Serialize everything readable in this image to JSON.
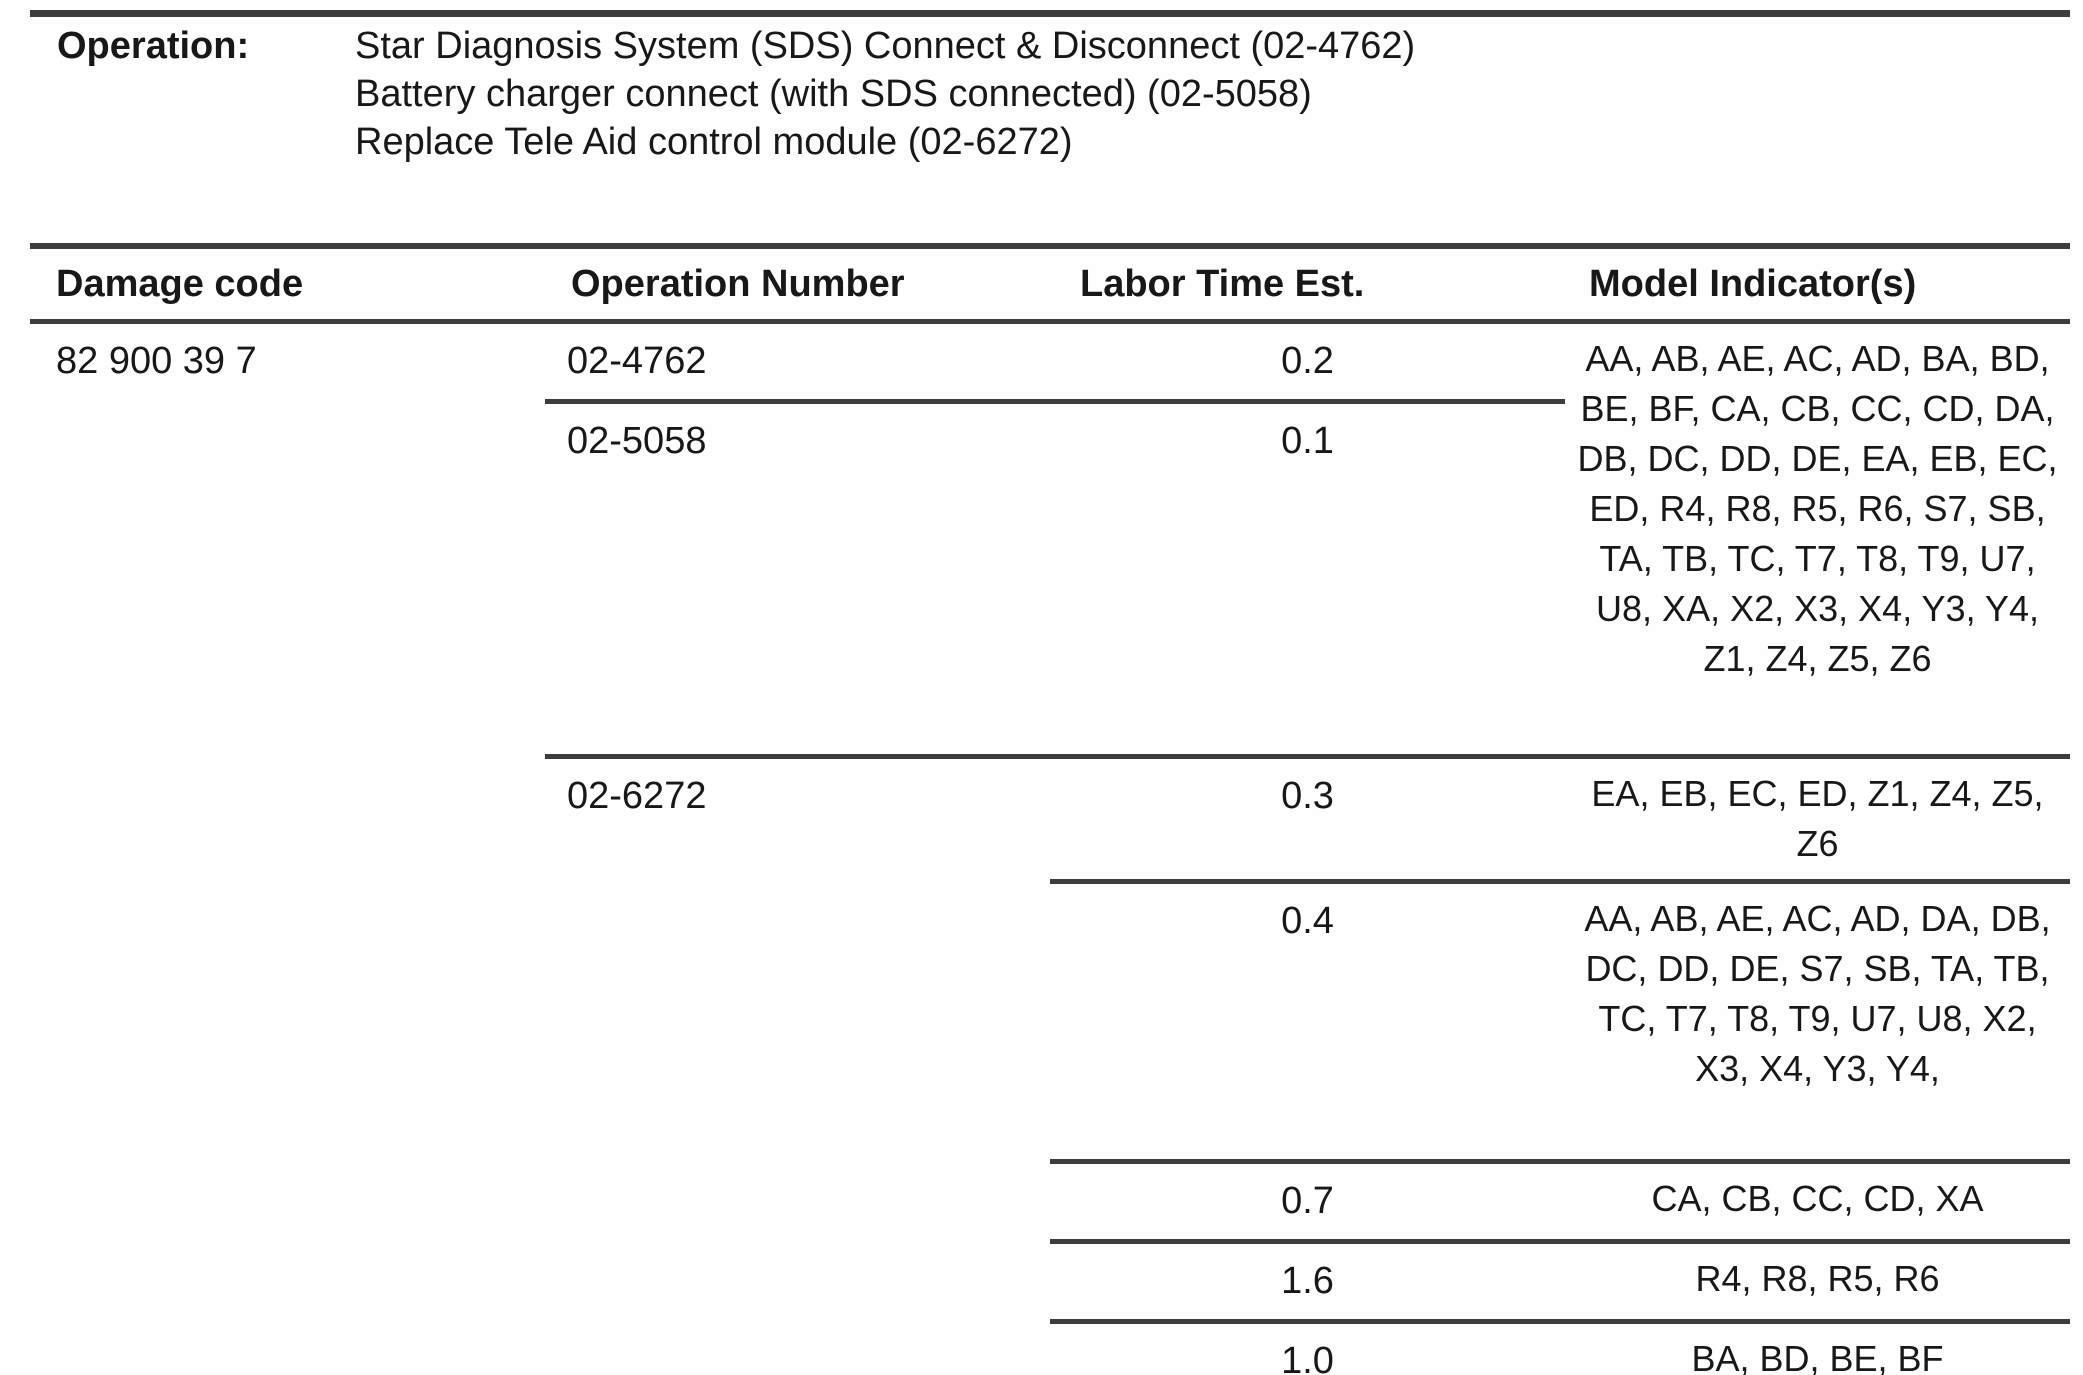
{
  "operation_block": {
    "label": "Operation:",
    "lines": [
      "Star Diagnosis System (SDS) Connect & Disconnect (02-4762)",
      "Battery charger connect (with SDS connected) (02-5058)",
      "Replace Tele Aid control module (02-6272)"
    ]
  },
  "table": {
    "headers": [
      "Damage code",
      "Operation Number",
      "Labor Time Est.",
      "Model Indicator(s)"
    ],
    "damage_code": "82 900 39 7",
    "rows": [
      {
        "operation_number": "02-4762",
        "labor_time": "0.2",
        "model_indicators": "AA, AB, AE, AC, AD, BA, BD, BE, BF, CA, CB, CC, CD, DA, DB, DC, DD, DE, EA, EB, EC, ED, R4, R8, R5, R6, S7, SB, TA, TB, TC, T7, T8, T9, U7, U8, XA, X2, X3, X4, Y3, Y4, Z1, Z4, Z5, Z6"
      },
      {
        "operation_number": "02-5058",
        "labor_time": "0.1",
        "model_indicators": ""
      },
      {
        "operation_number": "02-6272",
        "labor_time": "0.3",
        "model_indicators": "EA, EB, EC, ED, Z1, Z4, Z5, Z6"
      },
      {
        "operation_number": "",
        "labor_time": "0.4",
        "model_indicators": "AA, AB, AE, AC, AD, DA, DB, DC, DD, DE, S7, SB, TA, TB, TC, T7, T8, T9, U7, U8, X2, X3, X4, Y3, Y4,"
      },
      {
        "operation_number": "",
        "labor_time": "0.7",
        "model_indicators": "CA, CB, CC, CD, XA"
      },
      {
        "operation_number": "",
        "labor_time": "1.6",
        "model_indicators": "R4, R8, R5, R6"
      },
      {
        "operation_number": "",
        "labor_time": "1.0",
        "model_indicators": "BA, BD, BE, BF"
      }
    ]
  }
}
